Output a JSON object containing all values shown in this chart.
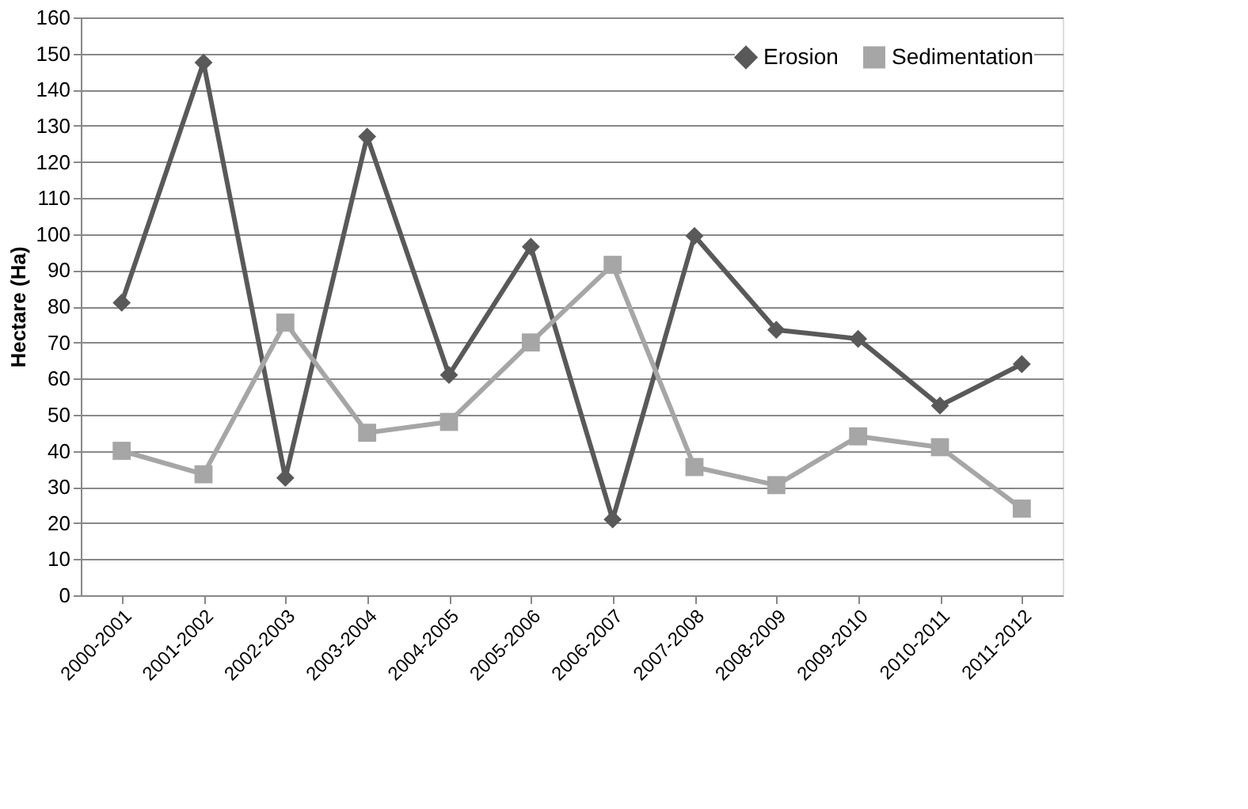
{
  "chart_data": {
    "type": "line",
    "ylabel": "Hectare (Ha)",
    "categories": [
      "2000-2001",
      "2001-2002",
      "2002-2003",
      "2003-2004",
      "2004-2005",
      "2005-2006",
      "2006-2007",
      "2007-2008",
      "2008-2009",
      "2009-2010",
      "2010-2011",
      "2011-2012"
    ],
    "series": [
      {
        "name": "Erosion",
        "color": "#595959",
        "marker": "diamond",
        "values": [
          81,
          147.5,
          32.5,
          127,
          61,
          96.5,
          21,
          99.5,
          73.5,
          71,
          52.5,
          64
        ]
      },
      {
        "name": "Sedimentation",
        "color": "#a6a6a6",
        "marker": "square",
        "values": [
          40,
          33.5,
          75.5,
          45,
          48,
          70,
          91.5,
          35.5,
          30.5,
          44,
          41,
          24
        ]
      }
    ],
    "ylim": [
      0,
      160
    ],
    "yticks": [
      0,
      10,
      20,
      30,
      40,
      50,
      60,
      70,
      80,
      90,
      100,
      110,
      120,
      130,
      140,
      150,
      160
    ],
    "grid": "y",
    "legend": "top right"
  }
}
